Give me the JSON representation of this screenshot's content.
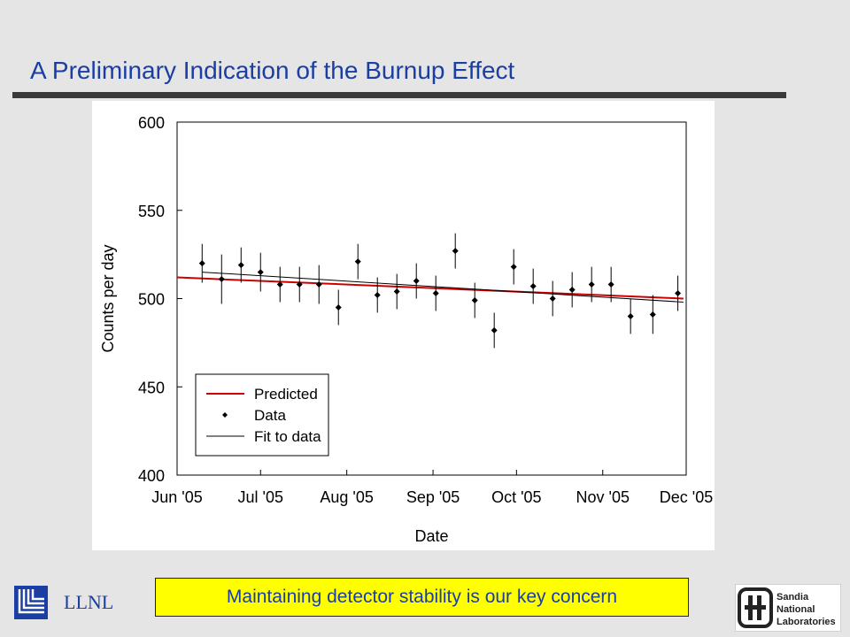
{
  "slide": {
    "title": "A Preliminary Indication of the Burnup Effect",
    "callout": "Maintaining detector stability is our key concern",
    "footer_left": "LLNL",
    "logos": {
      "left": "llnl-logo-icon",
      "right": "sandia-national-laboratories-logo",
      "right_text": [
        "Sandia",
        "National",
        "Laboratories"
      ]
    }
  },
  "colors": {
    "title": "#1a3ea3",
    "rule": "#3a3a3a",
    "callout_bg": "#ffff00",
    "predicted": "#cc0000",
    "data": "#000000",
    "fit": "#000000"
  },
  "chart_data": {
    "type": "scatter",
    "xlabel": "Date",
    "ylabel": "Counts per day",
    "ylim": [
      400,
      600
    ],
    "yticks": [
      400,
      450,
      500,
      550,
      600
    ],
    "xlim": [
      "2005-06-01",
      "2005-12-01"
    ],
    "xticks": [
      "2005-06-01",
      "2005-07-01",
      "2005-08-01",
      "2005-09-01",
      "2005-10-01",
      "2005-11-01",
      "2005-12-01"
    ],
    "xtick_labels": [
      "Jun '05",
      "Jul '05",
      "Aug '05",
      "Sep '05",
      "Oct '05",
      "Nov '05",
      "Dec '05"
    ],
    "grid": false,
    "legend": {
      "position": "bottom-left",
      "entries": [
        "Predicted",
        "Data",
        "Fit to data"
      ]
    },
    "series": [
      {
        "name": "Data",
        "style": "points-with-error-bars",
        "points": [
          {
            "x": "2005-06-10",
            "y": 520,
            "err": 11
          },
          {
            "x": "2005-06-17",
            "y": 511,
            "err": 14
          },
          {
            "x": "2005-06-24",
            "y": 519,
            "err": 10
          },
          {
            "x": "2005-07-01",
            "y": 515,
            "err": 11
          },
          {
            "x": "2005-07-08",
            "y": 508,
            "err": 10
          },
          {
            "x": "2005-07-15",
            "y": 508,
            "err": 10
          },
          {
            "x": "2005-07-22",
            "y": 508,
            "err": 11
          },
          {
            "x": "2005-07-29",
            "y": 495,
            "err": 10
          },
          {
            "x": "2005-08-05",
            "y": 521,
            "err": 10
          },
          {
            "x": "2005-08-12",
            "y": 502,
            "err": 10
          },
          {
            "x": "2005-08-19",
            "y": 504,
            "err": 10
          },
          {
            "x": "2005-08-26",
            "y": 510,
            "err": 10
          },
          {
            "x": "2005-09-02",
            "y": 503,
            "err": 10
          },
          {
            "x": "2005-09-09",
            "y": 527,
            "err": 10
          },
          {
            "x": "2005-09-16",
            "y": 499,
            "err": 10
          },
          {
            "x": "2005-09-23",
            "y": 482,
            "err": 10
          },
          {
            "x": "2005-09-30",
            "y": 518,
            "err": 10
          },
          {
            "x": "2005-10-07",
            "y": 507,
            "err": 10
          },
          {
            "x": "2005-10-14",
            "y": 500,
            "err": 10
          },
          {
            "x": "2005-10-21",
            "y": 505,
            "err": 10
          },
          {
            "x": "2005-10-28",
            "y": 508,
            "err": 10
          },
          {
            "x": "2005-11-04",
            "y": 508,
            "err": 10
          },
          {
            "x": "2005-11-11",
            "y": 490,
            "err": 10
          },
          {
            "x": "2005-11-19",
            "y": 491,
            "err": 11
          },
          {
            "x": "2005-11-28",
            "y": 503,
            "err": 10
          }
        ]
      },
      {
        "name": "Predicted",
        "style": "line",
        "points": [
          {
            "x": "2005-06-01",
            "y": 512
          },
          {
            "x": "2005-11-30",
            "y": 500
          }
        ]
      },
      {
        "name": "Fit to data",
        "style": "line",
        "points": [
          {
            "x": "2005-06-10",
            "y": 515
          },
          {
            "x": "2005-11-30",
            "y": 498
          }
        ]
      }
    ]
  }
}
